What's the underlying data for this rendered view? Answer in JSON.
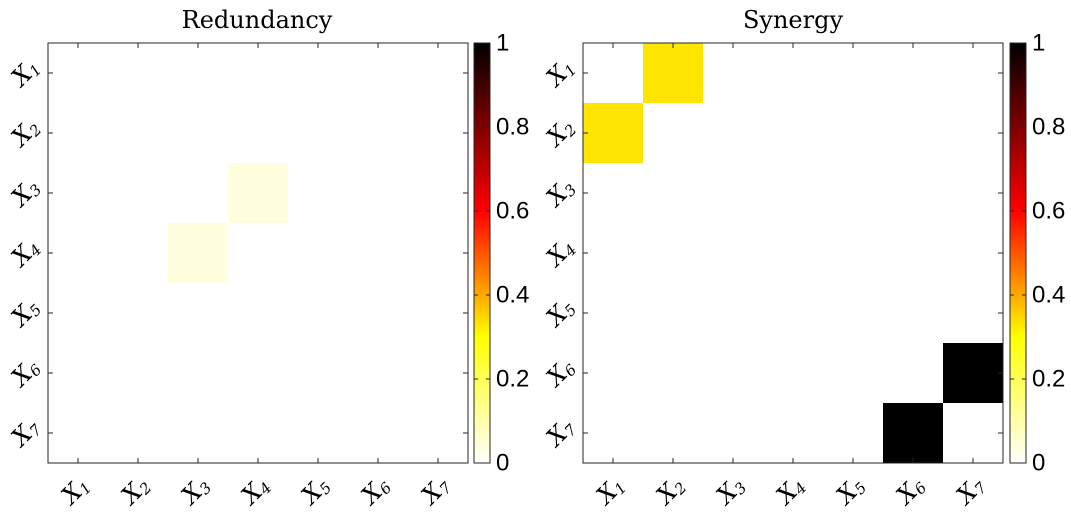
{
  "chart_data": [
    {
      "type": "heatmap",
      "title": "Redundancy",
      "x_labels": [
        [
          "X",
          "1"
        ],
        [
          "X",
          "2"
        ],
        [
          "X",
          "3"
        ],
        [
          "X",
          "4"
        ],
        [
          "X",
          "5"
        ],
        [
          "X",
          "6"
        ],
        [
          "X",
          "7"
        ]
      ],
      "y_labels": [
        [
          "X",
          "1"
        ],
        [
          "X",
          "2"
        ],
        [
          "X",
          "3"
        ],
        [
          "X",
          "4"
        ],
        [
          "X",
          "5"
        ],
        [
          "X",
          "6"
        ],
        [
          "X",
          "7"
        ]
      ],
      "matrix": [
        [
          0,
          0,
          0,
          0,
          0,
          0,
          0
        ],
        [
          0,
          0,
          0,
          0,
          0,
          0,
          0
        ],
        [
          0,
          0,
          0,
          0.04,
          0,
          0,
          0
        ],
        [
          0,
          0,
          0.04,
          0,
          0,
          0,
          0
        ],
        [
          0,
          0,
          0,
          0,
          0,
          0,
          0
        ],
        [
          0,
          0,
          0,
          0,
          0,
          0,
          0
        ],
        [
          0,
          0,
          0,
          0,
          0,
          0,
          0
        ]
      ],
      "colorbar": {
        "range": [
          0,
          1
        ],
        "ticks": [
          "0",
          "0.2",
          "0.4",
          "0.6",
          "0.8",
          "1"
        ],
        "colormap": "hot-reversed"
      }
    },
    {
      "type": "heatmap",
      "title": "Synergy",
      "x_labels": [
        [
          "X",
          "1"
        ],
        [
          "X",
          "2"
        ],
        [
          "X",
          "3"
        ],
        [
          "X",
          "4"
        ],
        [
          "X",
          "5"
        ],
        [
          "X",
          "6"
        ],
        [
          "X",
          "7"
        ]
      ],
      "y_labels": [
        [
          "X",
          "1"
        ],
        [
          "X",
          "2"
        ],
        [
          "X",
          "3"
        ],
        [
          "X",
          "4"
        ],
        [
          "X",
          "5"
        ],
        [
          "X",
          "6"
        ],
        [
          "X",
          "7"
        ]
      ],
      "matrix": [
        [
          0,
          0.33,
          0,
          0,
          0,
          0,
          0
        ],
        [
          0.33,
          0,
          0,
          0,
          0,
          0,
          0
        ],
        [
          0,
          0,
          0,
          0,
          0,
          0,
          0
        ],
        [
          0,
          0,
          0,
          0,
          0,
          0,
          0
        ],
        [
          0,
          0,
          0,
          0,
          0,
          0,
          0
        ],
        [
          0,
          0,
          0,
          0,
          0,
          0,
          1
        ],
        [
          0,
          0,
          0,
          0,
          0,
          1,
          0
        ]
      ],
      "colorbar": {
        "range": [
          0,
          1
        ],
        "ticks": [
          "0",
          "0.2",
          "0.4",
          "0.6",
          "0.8",
          "1"
        ],
        "colormap": "hot-reversed"
      }
    }
  ]
}
